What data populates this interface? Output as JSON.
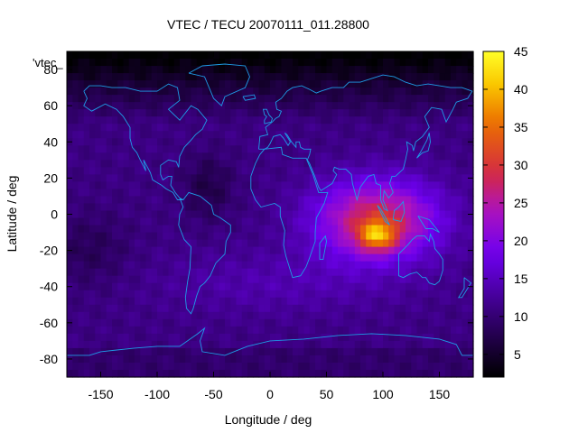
{
  "chart_data": {
    "type": "heatmap",
    "title": "VTEC / TECU 20070111_011.28800",
    "xlabel": "Longitude / deg",
    "ylabel": "Latitude / deg",
    "legend_entry": "'vtec_",
    "xlim": [
      -180,
      180
    ],
    "ylim": [
      -90,
      90
    ],
    "x_ticks": [
      -150,
      -100,
      -50,
      0,
      50,
      100,
      150
    ],
    "y_ticks": [
      -80,
      -60,
      -40,
      -20,
      0,
      20,
      40,
      60,
      80
    ],
    "x_tick_labels": [
      "-150",
      "-100",
      "-50",
      "0",
      "50",
      "100",
      "150"
    ],
    "y_tick_labels": [
      "-80",
      "-60",
      "-40",
      "-20",
      "0",
      "20",
      "40",
      "60",
      "80"
    ],
    "colorbar": {
      "range": [
        2,
        45
      ],
      "ticks": [
        5,
        10,
        15,
        20,
        25,
        30,
        35,
        40,
        45
      ],
      "tick_labels": [
        "5",
        "10",
        "15",
        "20",
        "25",
        "30",
        "35",
        "40",
        "45"
      ]
    },
    "field_model": {
      "background_tecu": 11,
      "peak": {
        "lon": 95,
        "lat": -12,
        "value_tecu": 45
      },
      "main_anomaly": {
        "lon_center": 95,
        "lat_center": -3,
        "value_tecu": 18
      },
      "polar_minimum": {
        "lat_above": 50,
        "value_tecu": 4
      },
      "south_america_low": {
        "lon": -55,
        "lat": 15,
        "value_tecu": 4
      }
    },
    "grid": false,
    "colormap": "gnuplot-like (black-purple-red-yellow)"
  },
  "colors": {
    "coast": "#1E9BE6",
    "axis": "#000000",
    "background": "#FFFFFF"
  }
}
